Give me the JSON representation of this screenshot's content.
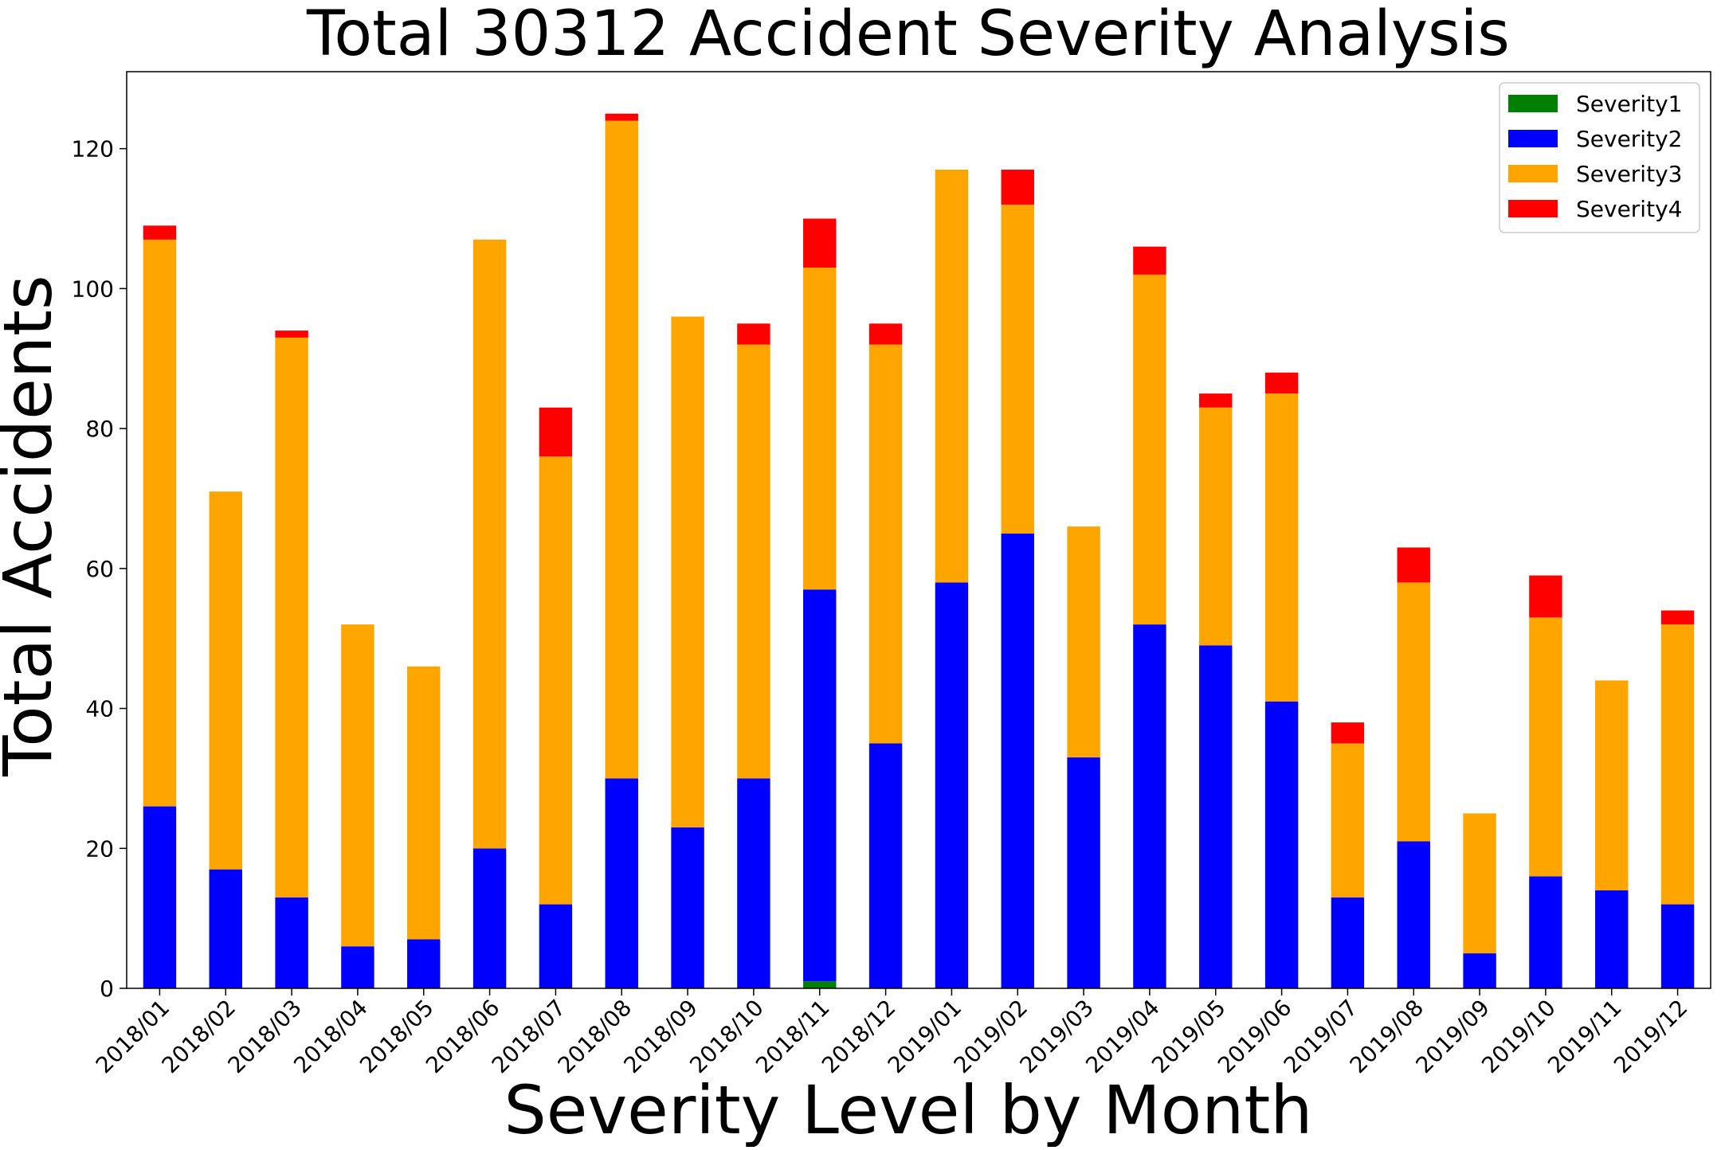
{
  "chart_data": {
    "type": "bar",
    "stacked": true,
    "title": "Total 30312 Accident Severity Analysis",
    "xlabel": "Severity Level by Month",
    "ylabel": "Total Accidents",
    "ylim": [
      0,
      131
    ],
    "yticks": [
      0,
      20,
      40,
      60,
      80,
      100,
      120
    ],
    "grid": false,
    "legend_position": "top-right",
    "categories": [
      "2018/01",
      "2018/02",
      "2018/03",
      "2018/04",
      "2018/05",
      "2018/06",
      "2018/07",
      "2018/08",
      "2018/09",
      "2018/10",
      "2018/11",
      "2018/12",
      "2019/01",
      "2019/02",
      "2019/03",
      "2019/04",
      "2019/05",
      "2019/06",
      "2019/07",
      "2019/08",
      "2019/09",
      "2019/10",
      "2019/11",
      "2019/12"
    ],
    "series": [
      {
        "name": "Severity1",
        "color": "#008000",
        "values": [
          0,
          0,
          0,
          0,
          0,
          0,
          0,
          0,
          0,
          0,
          1,
          0,
          0,
          0,
          0,
          0,
          0,
          0,
          0,
          0,
          0,
          0,
          0,
          0
        ]
      },
      {
        "name": "Severity2",
        "color": "#0000ff",
        "values": [
          26,
          17,
          13,
          6,
          7,
          20,
          12,
          30,
          23,
          30,
          56,
          35,
          58,
          65,
          33,
          52,
          49,
          41,
          13,
          21,
          5,
          16,
          14,
          12
        ]
      },
      {
        "name": "Severity3",
        "color": "#ffa500",
        "values": [
          81,
          54,
          80,
          46,
          39,
          87,
          64,
          94,
          73,
          62,
          46,
          57,
          59,
          47,
          33,
          50,
          34,
          44,
          22,
          37,
          20,
          37,
          30,
          40
        ]
      },
      {
        "name": "Severity4",
        "color": "#ff0000",
        "values": [
          2,
          0,
          1,
          0,
          0,
          0,
          7,
          1,
          0,
          3,
          7,
          3,
          0,
          5,
          0,
          4,
          2,
          3,
          3,
          5,
          0,
          6,
          0,
          2
        ]
      }
    ]
  }
}
